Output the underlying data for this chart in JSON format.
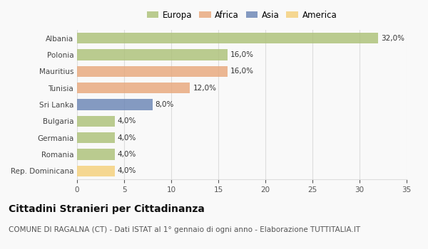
{
  "countries": [
    "Albania",
    "Polonia",
    "Mauritius",
    "Tunisia",
    "Sri Lanka",
    "Bulgaria",
    "Germania",
    "Romania",
    "Rep. Dominicana"
  ],
  "values": [
    32.0,
    16.0,
    16.0,
    12.0,
    8.0,
    4.0,
    4.0,
    4.0,
    4.0
  ],
  "labels": [
    "32,0%",
    "16,0%",
    "16,0%",
    "12,0%",
    "8,0%",
    "4,0%",
    "4,0%",
    "4,0%",
    "4,0%"
  ],
  "colors": [
    "#adc178",
    "#adc178",
    "#e8a87c",
    "#e8a87c",
    "#6b85b5",
    "#adc178",
    "#adc178",
    "#adc178",
    "#f5d07a"
  ],
  "legend_labels": [
    "Europa",
    "Africa",
    "Asia",
    "America"
  ],
  "legend_colors": [
    "#adc178",
    "#e8a87c",
    "#6b85b5",
    "#f5d07a"
  ],
  "xlim": [
    0,
    35
  ],
  "xticks": [
    0,
    5,
    10,
    15,
    20,
    25,
    30,
    35
  ],
  "title": "Cittadini Stranieri per Cittadinanza",
  "subtitle": "COMUNE DI RAGALNA (CT) - Dati ISTAT al 1° gennaio di ogni anno - Elaborazione TUTTITALIA.IT",
  "background_color": "#f9f9f9",
  "grid_color": "#dddddd",
  "bar_height": 0.65,
  "title_fontsize": 10,
  "subtitle_fontsize": 7.5,
  "label_fontsize": 7.5,
  "tick_fontsize": 7.5,
  "legend_fontsize": 8.5
}
